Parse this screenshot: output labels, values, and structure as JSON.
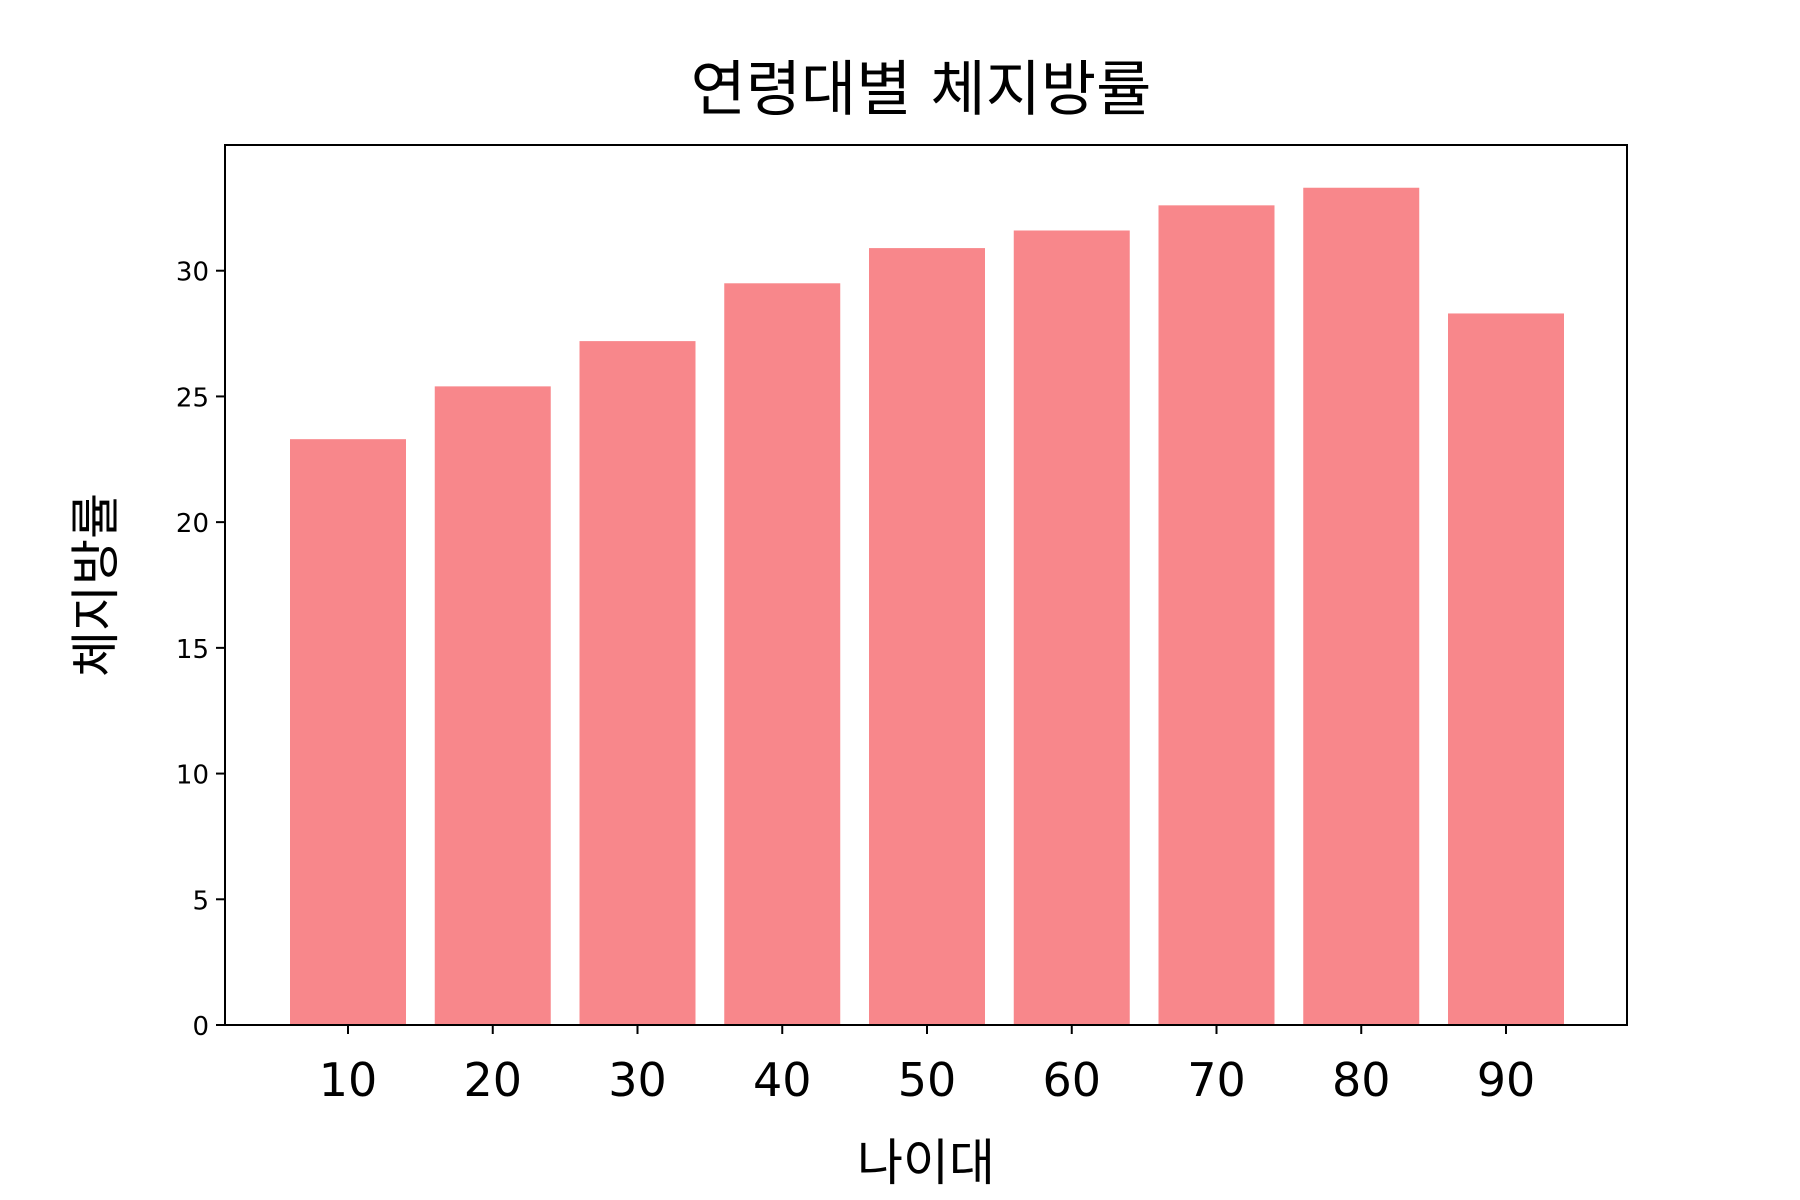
{
  "chart_data": {
    "type": "bar",
    "title": "연령대별 체지방률",
    "xlabel": "나이대",
    "ylabel": "체지방률",
    "categories": [
      "10",
      "20",
      "30",
      "40",
      "50",
      "60",
      "70",
      "80",
      "90"
    ],
    "values": [
      23.3,
      25.4,
      27.2,
      29.5,
      30.9,
      31.6,
      32.6,
      33.3,
      28.3
    ],
    "yticks": [
      "0",
      "5",
      "10",
      "15",
      "20",
      "25",
      "30"
    ],
    "ylim": [
      0,
      35
    ],
    "grid": false,
    "legend": "none",
    "bar_color": "#f8878b"
  }
}
